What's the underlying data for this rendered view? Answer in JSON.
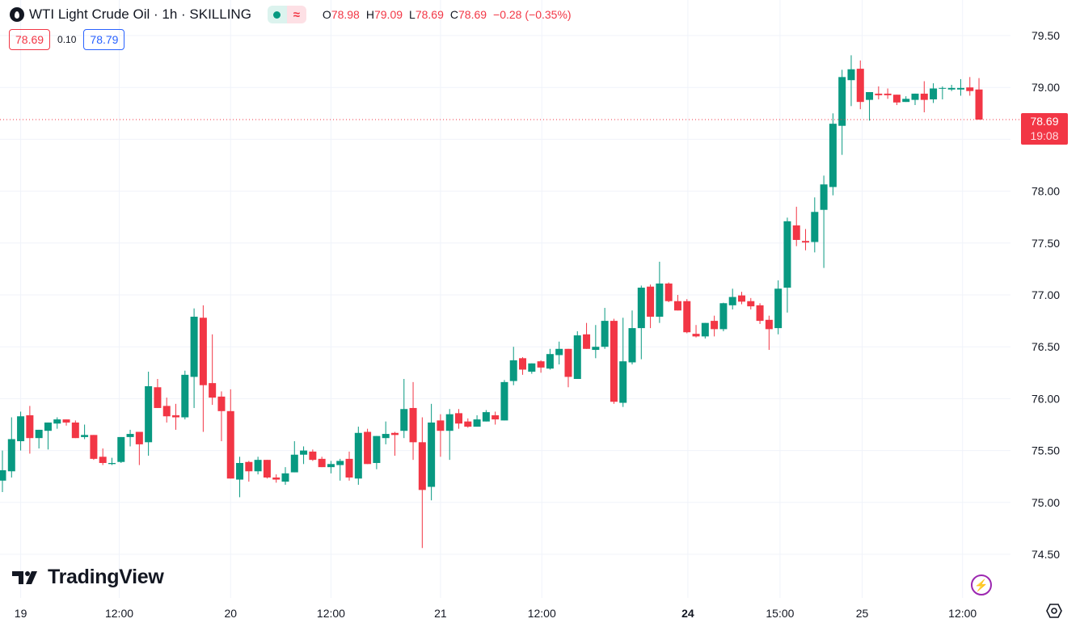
{
  "header": {
    "title": "WTI Light Crude Oil · 1h · SKILLING",
    "status_icons": [
      "market-open-dot-icon",
      "delayed-wave-icon"
    ],
    "ohlc": {
      "o_label": "O",
      "o": "78.98",
      "h_label": "H",
      "h": "79.09",
      "l_label": "L",
      "l": "78.69",
      "c_label": "C",
      "c": "78.69",
      "change": "−0.28 (−0.35%)"
    }
  },
  "quotes": {
    "bid": "78.69",
    "spread": "0.10",
    "ask": "78.79"
  },
  "price_tag": {
    "price": "78.69",
    "countdown": "19:08"
  },
  "logo": {
    "text": "TradingView"
  },
  "colors": {
    "up": "#089981",
    "down": "#F23645",
    "grid": "#f0f3fa",
    "last_price": "#F23645",
    "ask": "#2962FF",
    "accent": "#9c27b0"
  },
  "chart_data": {
    "type": "candlestick",
    "title": "WTI Light Crude Oil · 1h · SKILLING",
    "ylim": [
      74.25,
      79.75
    ],
    "y_ticks": [
      "79.50",
      "79.00",
      "78.00",
      "77.50",
      "77.00",
      "76.50",
      "76.00",
      "75.50",
      "75.00",
      "74.50"
    ],
    "y_tick_values": [
      79.5,
      79.0,
      78.0,
      77.5,
      77.0,
      76.5,
      76.0,
      75.5,
      75.0,
      74.5
    ],
    "x_ticks": [
      {
        "label": "19",
        "index": 2.0,
        "bold": false
      },
      {
        "label": "12:00",
        "index": 12.8,
        "bold": false
      },
      {
        "label": "20",
        "index": 25.0,
        "bold": false
      },
      {
        "label": "12:00",
        "index": 36.0,
        "bold": false
      },
      {
        "label": "21",
        "index": 48.0,
        "bold": false
      },
      {
        "label": "12:00",
        "index": 59.1,
        "bold": false
      },
      {
        "label": "24",
        "index": 75.1,
        "bold": true
      },
      {
        "label": "15:00",
        "index": 85.2,
        "bold": false
      },
      {
        "label": "25",
        "index": 94.2,
        "bold": false
      },
      {
        "label": "12:00",
        "index": 105.2,
        "bold": false
      }
    ],
    "last_price": 78.69,
    "ohlc_columns": [
      "open",
      "high",
      "low",
      "close"
    ],
    "candles": [
      [
        75.21,
        75.5,
        75.1,
        75.31
      ],
      [
        75.3,
        75.82,
        75.24,
        75.61
      ],
      [
        75.59,
        75.875,
        75.5,
        75.83
      ],
      [
        75.84,
        75.93,
        75.47,
        75.62
      ],
      [
        75.62,
        75.7,
        75.52,
        75.7
      ],
      [
        75.69,
        75.77,
        75.51,
        75.77
      ],
      [
        75.76,
        75.82,
        75.71,
        75.8
      ],
      [
        75.8,
        75.8,
        75.74,
        75.77
      ],
      [
        75.77,
        75.79,
        75.62,
        75.62
      ],
      [
        75.63,
        75.75,
        75.61,
        75.65
      ],
      [
        75.65,
        75.65,
        75.41,
        75.42
      ],
      [
        75.44,
        75.52,
        75.36,
        75.38
      ],
      [
        75.37,
        75.43,
        75.36,
        75.38
      ],
      [
        75.39,
        75.63,
        75.38,
        75.63
      ],
      [
        75.63,
        75.7,
        75.54,
        75.66
      ],
      [
        75.68,
        75.68,
        75.36,
        75.56
      ],
      [
        75.58,
        76.26,
        75.45,
        76.12
      ],
      [
        76.11,
        76.19,
        75.91,
        75.91
      ],
      [
        75.93,
        76.01,
        75.77,
        75.83
      ],
      [
        75.84,
        75.95,
        75.7,
        75.82
      ],
      [
        75.82,
        76.27,
        75.8,
        76.23
      ],
      [
        76.21,
        76.87,
        75.91,
        76.79
      ],
      [
        76.78,
        76.9,
        75.68,
        76.13
      ],
      [
        76.15,
        76.62,
        75.94,
        76.01
      ],
      [
        76.02,
        76.07,
        75.59,
        75.88
      ],
      [
        75.88,
        76.09,
        75.23,
        75.23
      ],
      [
        75.22,
        75.44,
        75.05,
        75.38
      ],
      [
        75.39,
        75.4,
        75.2,
        75.3
      ],
      [
        75.3,
        75.44,
        75.27,
        75.41
      ],
      [
        75.41,
        75.41,
        75.23,
        75.24
      ],
      [
        75.24,
        75.27,
        75.19,
        75.22
      ],
      [
        75.2,
        75.34,
        75.17,
        75.28
      ],
      [
        75.29,
        75.59,
        75.29,
        75.46
      ],
      [
        75.46,
        75.54,
        75.37,
        75.5
      ],
      [
        75.49,
        75.51,
        75.4,
        75.41
      ],
      [
        75.42,
        75.44,
        75.34,
        75.34
      ],
      [
        75.34,
        75.4,
        75.28,
        75.37
      ],
      [
        75.36,
        75.42,
        75.21,
        75.4
      ],
      [
        75.42,
        75.49,
        75.21,
        75.24
      ],
      [
        75.23,
        75.73,
        75.17,
        75.67
      ],
      [
        75.68,
        75.71,
        75.37,
        75.37
      ],
      [
        75.38,
        75.64,
        75.32,
        75.64
      ],
      [
        75.62,
        75.78,
        75.56,
        75.66
      ],
      [
        75.67,
        75.68,
        75.45,
        75.65
      ],
      [
        75.69,
        76.19,
        75.62,
        75.9
      ],
      [
        75.91,
        76.16,
        75.41,
        75.58
      ],
      [
        75.58,
        75.82,
        74.56,
        75.12
      ],
      [
        75.15,
        75.95,
        75.02,
        75.77
      ],
      [
        75.79,
        75.85,
        75.44,
        75.69
      ],
      [
        75.69,
        75.9,
        75.41,
        75.85
      ],
      [
        75.86,
        75.9,
        75.71,
        75.76
      ],
      [
        75.78,
        75.81,
        75.72,
        75.73
      ],
      [
        75.73,
        75.84,
        75.73,
        75.8
      ],
      [
        75.78,
        75.89,
        75.78,
        75.87
      ],
      [
        75.84,
        75.875,
        75.75,
        75.8
      ],
      [
        75.79,
        76.18,
        75.79,
        76.16
      ],
      [
        76.17,
        76.5,
        76.13,
        76.37
      ],
      [
        76.39,
        76.4,
        76.23,
        76.28
      ],
      [
        76.26,
        76.34,
        76.24,
        76.34
      ],
      [
        76.36,
        76.37,
        76.25,
        76.3
      ],
      [
        76.29,
        76.48,
        76.28,
        76.43
      ],
      [
        76.42,
        76.55,
        76.33,
        76.48
      ],
      [
        76.48,
        76.48,
        76.11,
        76.21
      ],
      [
        76.19,
        76.65,
        76.19,
        76.61
      ],
      [
        76.62,
        76.73,
        76.48,
        76.48
      ],
      [
        76.47,
        76.71,
        76.39,
        76.5
      ],
      [
        76.5,
        76.875,
        76.48,
        76.75
      ],
      [
        76.75,
        76.77,
        75.95,
        75.97
      ],
      [
        75.96,
        76.78,
        75.92,
        76.36
      ],
      [
        76.35,
        76.85,
        76.33,
        76.68
      ],
      [
        76.68,
        77.09,
        76.38,
        77.07
      ],
      [
        77.08,
        77.1,
        76.68,
        76.79
      ],
      [
        76.79,
        77.32,
        76.73,
        77.11
      ],
      [
        77.11,
        77.12,
        76.93,
        76.94
      ],
      [
        76.94,
        77.0,
        76.85,
        76.85
      ],
      [
        76.94,
        76.96,
        76.63,
        76.64
      ],
      [
        76.625,
        76.71,
        76.59,
        76.6
      ],
      [
        76.6,
        76.73,
        76.58,
        76.73
      ],
      [
        76.75,
        76.8,
        76.6,
        76.67
      ],
      [
        76.67,
        76.925,
        76.65,
        76.92
      ],
      [
        76.9,
        77.06,
        76.86,
        76.98
      ],
      [
        76.995,
        77.03,
        76.91,
        76.935
      ],
      [
        76.94,
        76.97,
        76.86,
        76.89
      ],
      [
        76.9,
        76.92,
        76.72,
        76.75
      ],
      [
        76.76,
        76.8,
        76.47,
        76.67
      ],
      [
        76.68,
        77.14,
        76.62,
        77.06
      ],
      [
        77.07,
        77.745,
        76.83,
        77.71
      ],
      [
        77.67,
        77.85,
        77.47,
        77.53
      ],
      [
        77.52,
        77.635,
        77.43,
        77.505
      ],
      [
        77.51,
        77.94,
        77.41,
        77.8
      ],
      [
        77.82,
        78.15,
        77.26,
        78.065
      ],
      [
        78.04,
        78.75,
        77.96,
        78.65
      ],
      [
        78.63,
        79.17,
        78.35,
        79.1
      ],
      [
        79.07,
        79.31,
        78.82,
        79.175
      ],
      [
        79.18,
        79.26,
        78.79,
        78.86
      ],
      [
        78.88,
        78.955,
        78.68,
        78.955
      ],
      [
        78.94,
        79.01,
        78.885,
        78.925
      ],
      [
        78.94,
        78.99,
        78.89,
        78.925
      ],
      [
        78.93,
        78.93,
        78.83,
        78.855
      ],
      [
        78.86,
        78.915,
        78.86,
        78.89
      ],
      [
        78.88,
        78.94,
        78.83,
        78.94
      ],
      [
        78.94,
        79.06,
        78.76,
        78.88
      ],
      [
        78.885,
        79.04,
        78.85,
        78.99
      ],
      [
        78.99,
        79.01,
        78.885,
        78.995
      ],
      [
        78.98,
        79.025,
        78.965,
        78.995
      ],
      [
        78.98,
        79.08,
        78.92,
        78.995
      ],
      [
        79.0,
        79.1,
        78.92,
        78.965
      ],
      [
        78.98,
        79.09,
        78.69,
        78.69
      ]
    ]
  }
}
